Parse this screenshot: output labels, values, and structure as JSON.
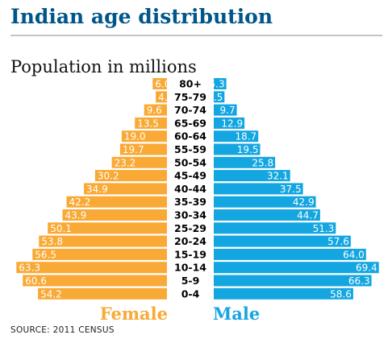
{
  "title": "Indian age distribution",
  "subtitle": "Population in millions",
  "source": "SOURCE: 2011 CENSUS",
  "colors": {
    "female": "#f9a935",
    "male": "#14a6e0",
    "title": "#005689"
  },
  "chart_data": {
    "type": "bar",
    "categories": [
      "80+",
      "75-79",
      "70-74",
      "65-69",
      "60-64",
      "55-59",
      "50-54",
      "45-49",
      "40-44",
      "35-39",
      "30-34",
      "25-29",
      "20-24",
      "15-19",
      "10-14",
      "5-9",
      "0-4"
    ],
    "series": [
      {
        "name": "Female",
        "values": [
          6.0,
          4.7,
          9.6,
          13.5,
          19.0,
          19.7,
          23.2,
          30.2,
          34.9,
          42.2,
          43.9,
          50.1,
          53.8,
          56.5,
          63.3,
          60.6,
          54.2
        ]
      },
      {
        "name": "Male",
        "values": [
          5.3,
          4.5,
          9.7,
          12.9,
          18.7,
          19.5,
          25.8,
          32.1,
          37.5,
          42.9,
          44.7,
          51.3,
          57.6,
          64.0,
          69.4,
          66.3,
          58.6
        ]
      }
    ],
    "value_labels": {
      "Female": [
        "6.0",
        "4.7",
        "9.6",
        "13.5",
        "19.0",
        "19.7",
        "23.2",
        "30.2",
        "34.9",
        "42.2",
        "43.9",
        "50.1",
        "53.8",
        "56.5",
        "63.3",
        "60.6",
        "54.2"
      ],
      "Male": [
        "5.3",
        "4.5",
        "9.7",
        "12.9",
        "18.7",
        "19.5",
        "25.8",
        "32.1",
        "37.5",
        "42.9",
        "44.7",
        "51.3",
        "57.6",
        "64.0",
        "69.4",
        "66.3",
        "58.6"
      ]
    },
    "title": "Indian age distribution",
    "ylabel": "Population in millions",
    "legend": "bottom"
  }
}
